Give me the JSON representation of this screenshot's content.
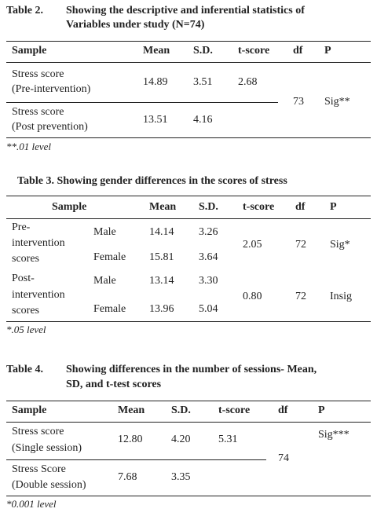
{
  "table2": {
    "label": "Table 2.",
    "caption_line1": "Showing the descriptive and inferential statistics of",
    "caption_line2": "Variables under study (N=74)",
    "headers": {
      "sample": "Sample",
      "mean": "Mean",
      "sd": "S.D.",
      "t": "t-score",
      "df": "df",
      "p": "P"
    },
    "rows": [
      {
        "line1": "Stress score",
        "line2": "(Pre-intervention)",
        "mean": "14.89",
        "sd": "3.51",
        "t": "2.68"
      },
      {
        "line1": "Stress score",
        "line2": "(Post prevention)",
        "mean": "13.51",
        "sd": "4.16"
      }
    ],
    "df": "73",
    "p": "Sig**",
    "note": "**.01 level"
  },
  "table3": {
    "caption": "Table 3. Showing gender differences in the scores of stress",
    "headers": {
      "sample": "Sample",
      "mean": "Mean",
      "sd": "S.D.",
      "t": "t-score",
      "df": "df",
      "p": "P"
    },
    "groups": [
      {
        "name_lines": [
          "Pre-",
          "intervention",
          "scores"
        ],
        "male": {
          "label": "Male",
          "mean": "14.14",
          "sd": "3.26"
        },
        "female": {
          "label": "Female",
          "mean": "15.81",
          "sd": "3.64"
        },
        "t": "2.05",
        "df": "72",
        "p": "Sig*"
      },
      {
        "name_lines": [
          "Post-",
          "intervention",
          "scores"
        ],
        "male": {
          "label": "Male",
          "mean": "13.14",
          "sd": "3.30"
        },
        "female": {
          "label": "Female",
          "mean": "13.96",
          "sd": "5.04"
        },
        "t": "0.80",
        "df": "72",
        "p": "Insig"
      }
    ],
    "note": "*.05 level"
  },
  "table4": {
    "label": "Table 4.",
    "caption_line1": "Showing differences in the number of sessions- Mean,",
    "caption_line2": "SD, and t-test scores",
    "headers": {
      "sample": "Sample",
      "mean": "Mean",
      "sd": "S.D.",
      "t": "t-score",
      "df": "df",
      "p": "P"
    },
    "rows": [
      {
        "line1": "Stress score",
        "line2": "(Single session)",
        "mean": "12.80",
        "sd": "4.20",
        "t": "5.31"
      },
      {
        "line1": "Stress Score",
        "line2": "(Double session)",
        "mean": "7.68",
        "sd": "3.35"
      }
    ],
    "df": "74",
    "p": "Sig***",
    "note": "*0.001 level"
  }
}
